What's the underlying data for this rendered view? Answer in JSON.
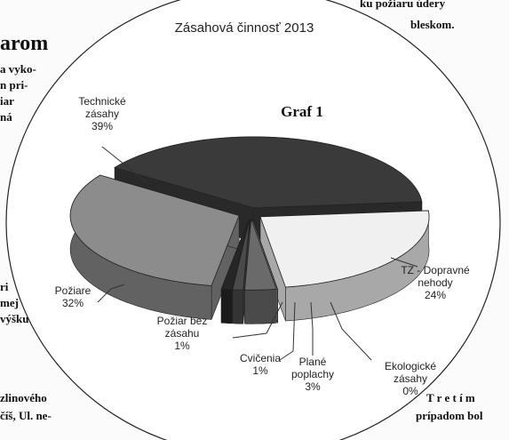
{
  "chart_data": {
    "type": "pie3d",
    "title": "Zásahová činnosť 2013",
    "annotation": "Graf 1",
    "categories": [
      "TZ - Dopravné nehody",
      "Ekologické zásahy",
      "Plané poplachy",
      "Cvičenia",
      "Požiar bez zásahu",
      "Požiare",
      "Technické zásahy"
    ],
    "values": [
      24,
      0,
      3,
      1,
      1,
      32,
      39
    ],
    "value_labels": [
      "24%",
      "0%",
      "3%",
      "1%",
      "1%",
      "32%",
      "39%"
    ],
    "colors": [
      "#f0f0f0",
      "#c8c8c8",
      "#6a6a6a",
      "#4a4a4a",
      "#262626",
      "#8c8c8c",
      "#3a3a3a"
    ]
  },
  "page_fragments": [
    "arom",
    "a vyko-",
    "n pri-",
    "iar",
    "ná",
    "ri",
    "mej",
    "výšku",
    "zlinového",
    "číš, Ul. ne-",
    "ku požiaru údery",
    "bleskom.",
    "T r e t í m",
    "prípadom bol"
  ]
}
